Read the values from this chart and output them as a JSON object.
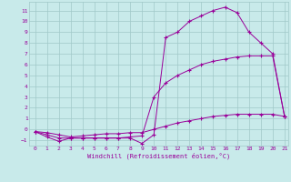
{
  "xlabel": "Windchill (Refroidissement éolien,°C)",
  "bg_color": "#c8eaea",
  "line_color": "#990099",
  "grid_color": "#a0c8c8",
  "xmin": -0.5,
  "xmax": 21.3,
  "ymin": -1.5,
  "ymax": 11.8,
  "yticks": [
    -1,
    0,
    1,
    2,
    3,
    4,
    5,
    6,
    7,
    8,
    9,
    10,
    11
  ],
  "xticks": [
    0,
    1,
    2,
    3,
    4,
    5,
    6,
    7,
    8,
    9,
    10,
    11,
    12,
    13,
    14,
    15,
    16,
    17,
    18,
    19,
    20,
    21
  ],
  "line1_x": [
    0,
    1,
    2,
    3,
    4,
    5,
    6,
    7,
    8,
    9,
    10,
    11,
    12,
    13,
    14,
    15,
    16,
    17,
    18,
    19,
    20,
    21
  ],
  "line1_y": [
    -0.2,
    -0.7,
    -1.1,
    -0.8,
    -0.8,
    -0.8,
    -0.8,
    -0.8,
    -0.8,
    -1.3,
    -0.5,
    8.5,
    9.0,
    10.0,
    10.5,
    11.0,
    11.3,
    10.8,
    9.0,
    8.0,
    7.0,
    1.2
  ],
  "line2_x": [
    0,
    1,
    2,
    3,
    4,
    5,
    6,
    7,
    8,
    9,
    10,
    11,
    12,
    13,
    14,
    15,
    16,
    17,
    18,
    19,
    20,
    21
  ],
  "line2_y": [
    -0.2,
    -0.5,
    -0.8,
    -0.8,
    -0.8,
    -0.8,
    -0.8,
    -0.8,
    -0.7,
    -0.6,
    3.0,
    4.3,
    5.0,
    5.5,
    6.0,
    6.3,
    6.5,
    6.7,
    6.8,
    6.8,
    6.8,
    1.2
  ],
  "line3_x": [
    0,
    1,
    2,
    3,
    4,
    5,
    6,
    7,
    8,
    9,
    10,
    11,
    12,
    13,
    14,
    15,
    16,
    17,
    18,
    19,
    20,
    21
  ],
  "line3_y": [
    -0.2,
    -0.3,
    -0.5,
    -0.7,
    -0.6,
    -0.5,
    -0.4,
    -0.4,
    -0.3,
    -0.3,
    0.0,
    0.3,
    0.6,
    0.8,
    1.0,
    1.2,
    1.3,
    1.4,
    1.4,
    1.4,
    1.4,
    1.2
  ]
}
